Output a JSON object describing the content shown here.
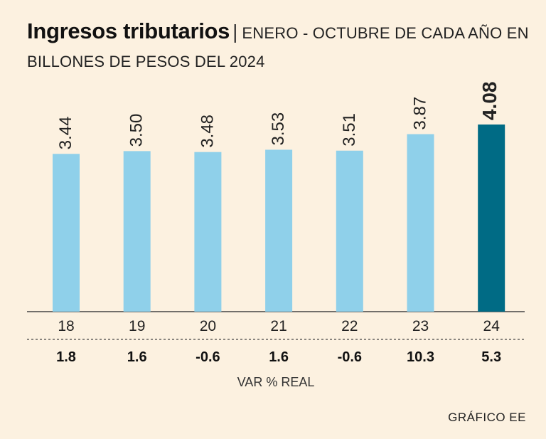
{
  "title": {
    "main": "Ingresos tributarios",
    "separator": "|",
    "subtitle_line1": "ENERO - OCTUBRE DE CADA AÑO EN",
    "subtitle_line2": "BILLONES DE PESOS DEL 2024"
  },
  "chart_data": {
    "type": "bar",
    "title": "Ingresos tributarios",
    "subtitle": "ENERO - OCTUBRE DE CADA AÑO EN BILLONES DE PESOS DEL 2024",
    "categories": [
      "18",
      "19",
      "20",
      "21",
      "22",
      "23",
      "24"
    ],
    "values": [
      3.44,
      3.5,
      3.48,
      3.53,
      3.51,
      3.87,
      4.08
    ],
    "value_labels": [
      "3.44",
      "3.50",
      "3.48",
      "3.53",
      "3.51",
      "3.87",
      "4.08"
    ],
    "variation": [
      "1.8",
      "1.6",
      "-0.6",
      "1.6",
      "-0.6",
      "10.3",
      "5.3"
    ],
    "variation_label": "VAR % REAL",
    "ylim": [
      0,
      4.08
    ],
    "highlight_index": 6,
    "colors": {
      "bar": "#8fd0ea",
      "highlight": "#006b85",
      "axis": "#444444",
      "background": "#fcf1e0"
    }
  },
  "credit": "GRÁFICO EE"
}
